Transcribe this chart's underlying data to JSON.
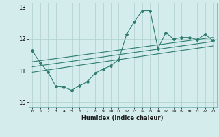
{
  "title": "",
  "xlabel": "Humidex (Indice chaleur)",
  "ylabel": "",
  "background_color": "#d4eceb",
  "line_color": "#2d7d6e",
  "grid_color": "#aecfcc",
  "xlim": [
    -0.5,
    23.5
  ],
  "ylim": [
    9.85,
    13.15
  ],
  "yticks": [
    10,
    11,
    12,
    13
  ],
  "xticks": [
    0,
    1,
    2,
    3,
    4,
    5,
    6,
    7,
    8,
    9,
    10,
    11,
    12,
    13,
    14,
    15,
    16,
    17,
    18,
    19,
    20,
    21,
    22,
    23
  ],
  "main_line_x": [
    0,
    1,
    2,
    3,
    4,
    5,
    6,
    7,
    8,
    9,
    10,
    11,
    12,
    13,
    14,
    15,
    16,
    17,
    18,
    19,
    20,
    21,
    22,
    23
  ],
  "main_line_y": [
    11.62,
    11.25,
    10.95,
    10.5,
    10.48,
    10.38,
    10.52,
    10.65,
    10.92,
    11.05,
    11.15,
    11.35,
    12.15,
    12.55,
    12.9,
    12.9,
    11.7,
    12.2,
    12.0,
    12.05,
    12.05,
    11.98,
    12.15,
    11.95
  ],
  "trend_line1_x": [
    0,
    23
  ],
  "trend_line1_y": [
    11.28,
    12.05
  ],
  "trend_line2_x": [
    0,
    23
  ],
  "trend_line2_y": [
    11.12,
    11.92
  ],
  "trend_line3_x": [
    0,
    23
  ],
  "trend_line3_y": [
    10.95,
    11.78
  ]
}
